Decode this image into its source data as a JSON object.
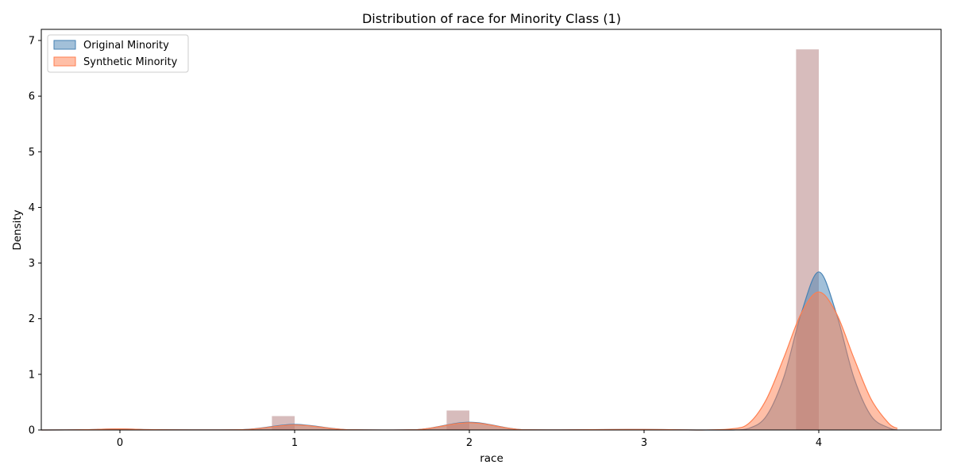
{
  "chart_data": {
    "type": "area",
    "title": "Distribution of race for Minority Class (1)",
    "xlabel": "race",
    "ylabel": "Density",
    "xlim": [
      -0.45,
      4.7
    ],
    "ylim": [
      0,
      7.2
    ],
    "x_ticks": [
      0,
      1,
      2,
      3,
      4
    ],
    "y_ticks": [
      0,
      1,
      2,
      3,
      4,
      5,
      6,
      7
    ],
    "grid": false,
    "legend_position": "top-left",
    "histogram": {
      "color": "#bc8f8f",
      "bin_width": 0.13,
      "bins": [
        {
          "x": 0,
          "value": 0.02
        },
        {
          "x": 1,
          "value": 0.25
        },
        {
          "x": 2,
          "value": 0.35
        },
        {
          "x": 3,
          "value": 0.01
        },
        {
          "x": 4,
          "value": 6.84
        }
      ]
    },
    "series": [
      {
        "name": "Original Minority",
        "color": "#4682b4",
        "x": [
          -0.45,
          -0.2,
          0.0,
          0.2,
          0.7,
          1.0,
          1.3,
          1.7,
          2.0,
          2.3,
          2.7,
          3.0,
          3.3,
          3.5,
          3.6,
          3.7,
          3.8,
          3.9,
          4.0,
          4.1,
          4.2,
          4.3,
          4.4,
          4.45
        ],
        "values": [
          0.0,
          0.005,
          0.02,
          0.005,
          0.005,
          0.1,
          0.005,
          0.005,
          0.14,
          0.005,
          0.005,
          0.01,
          0.0,
          0.0,
          0.03,
          0.25,
          0.95,
          2.1,
          2.84,
          2.1,
          0.95,
          0.25,
          0.04,
          0.0
        ]
      },
      {
        "name": "Synthetic Minority",
        "color": "#ff7f50",
        "x": [
          -0.45,
          -0.2,
          0.0,
          0.2,
          0.7,
          1.0,
          1.3,
          1.7,
          2.0,
          2.3,
          2.7,
          3.0,
          3.3,
          3.5,
          3.6,
          3.7,
          3.8,
          3.9,
          4.0,
          4.1,
          4.2,
          4.3,
          4.4,
          4.45
        ],
        "values": [
          0.0,
          0.005,
          0.02,
          0.005,
          0.005,
          0.09,
          0.005,
          0.005,
          0.13,
          0.005,
          0.005,
          0.01,
          0.0,
          0.02,
          0.12,
          0.55,
          1.3,
          2.1,
          2.48,
          2.1,
          1.3,
          0.55,
          0.12,
          0.03
        ]
      }
    ]
  }
}
